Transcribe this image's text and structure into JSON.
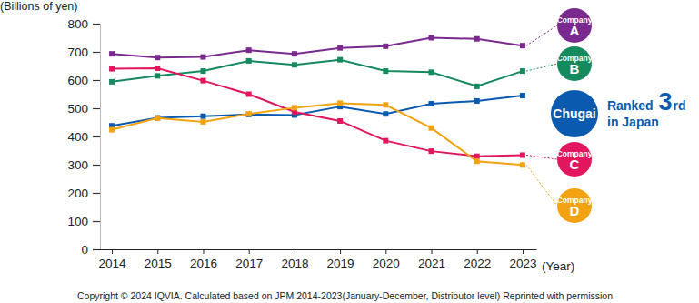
{
  "chart_data": {
    "type": "line",
    "y_label": "(Billions of yen)",
    "x_label": "(Year)",
    "source": "Copyright © 2024 IQVIA. Calculated based on JPM 2014-2023(January-December, Distributor level) Reprinted with permission",
    "annotation": [
      "Ranked",
      "3",
      "rd",
      "in Japan"
    ],
    "categories": [
      "2014",
      "2015",
      "2016",
      "2017",
      "2018",
      "2019",
      "2020",
      "2021",
      "2022",
      "2023"
    ],
    "marker": "square",
    "ylim": [
      0,
      800
    ],
    "yticks": [
      0,
      100,
      200,
      300,
      400,
      500,
      600,
      700,
      800
    ],
    "series": [
      {
        "name": "Company A",
        "color": "#7a2a8e",
        "values": [
          693,
          680,
          682,
          706,
          693,
          714,
          720,
          750,
          746,
          722
        ]
      },
      {
        "name": "Company B",
        "color": "#158a5e",
        "values": [
          594,
          615,
          632,
          668,
          654,
          672,
          632,
          628,
          578,
          632
        ]
      },
      {
        "name": "Chugai",
        "color": "#0a5bb0",
        "values": [
          438,
          466,
          472,
          478,
          476,
          506,
          480,
          516,
          526,
          545
        ]
      },
      {
        "name": "Company C",
        "color": "#e2165e",
        "values": [
          640,
          642,
          598,
          550,
          487,
          455,
          385,
          348,
          330,
          334
        ]
      },
      {
        "name": "Company D",
        "color": "#f3a312",
        "values": [
          424,
          465,
          452,
          480,
          502,
          518,
          512,
          430,
          312,
          299
        ]
      }
    ]
  }
}
